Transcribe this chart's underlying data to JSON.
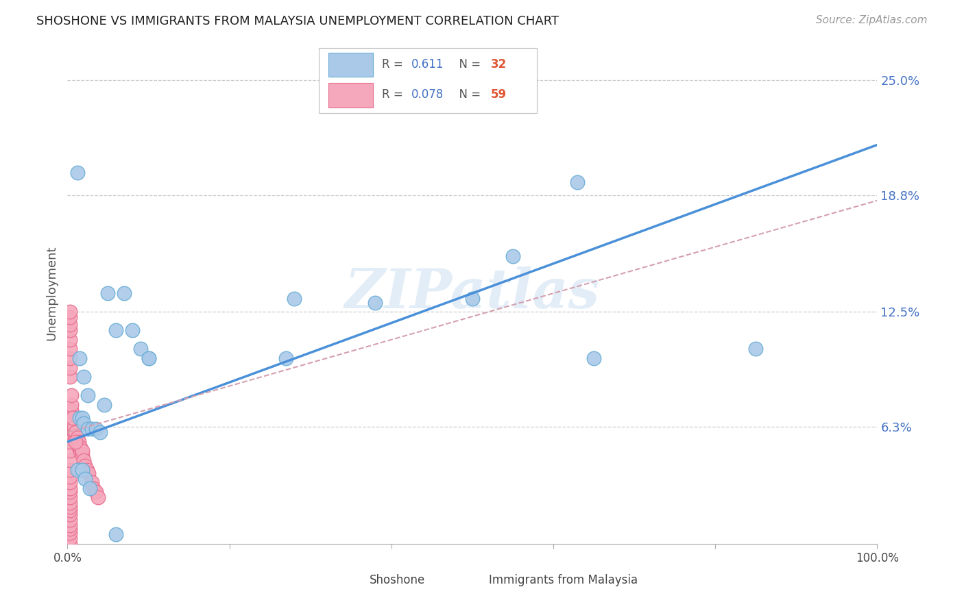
{
  "title": "SHOSHONE VS IMMIGRANTS FROM MALAYSIA UNEMPLOYMENT CORRELATION CHART",
  "source": "Source: ZipAtlas.com",
  "ylabel": "Unemployment",
  "ytick_vals": [
    0.063,
    0.125,
    0.188,
    0.25
  ],
  "ytick_labels": [
    "6.3%",
    "12.5%",
    "18.8%",
    "25.0%"
  ],
  "xlim": [
    0.0,
    1.0
  ],
  "ylim": [
    0.0,
    0.27
  ],
  "watermark": "ZIPatlas",
  "shoshone_color": "#aac9e8",
  "malaysia_color": "#f5a8bc",
  "shoshone_edge": "#6aaed6",
  "malaysia_edge": "#e87090",
  "trend_blue": "#4a90d9",
  "trend_pink_color": "#d4a0b0",
  "background_color": "#ffffff",
  "grid_color": "#cccccc",
  "shoshone_x": [
    0.012,
    0.015,
    0.018,
    0.02,
    0.025,
    0.03,
    0.035,
    0.04,
    0.045,
    0.05,
    0.06,
    0.07,
    0.08,
    0.09,
    0.1,
    0.015,
    0.02,
    0.025,
    0.27,
    0.38,
    0.5,
    0.55,
    0.63,
    0.65,
    0.85,
    0.28,
    0.1,
    0.012,
    0.018,
    0.022,
    0.028,
    0.06
  ],
  "shoshone_y": [
    0.2,
    0.068,
    0.068,
    0.065,
    0.062,
    0.062,
    0.062,
    0.06,
    0.075,
    0.135,
    0.115,
    0.135,
    0.115,
    0.105,
    0.1,
    0.1,
    0.09,
    0.08,
    0.1,
    0.13,
    0.132,
    0.155,
    0.195,
    0.1,
    0.105,
    0.132,
    0.1,
    0.04,
    0.04,
    0.035,
    0.03,
    0.005
  ],
  "malaysia_x": [
    0.003,
    0.003,
    0.003,
    0.003,
    0.003,
    0.003,
    0.003,
    0.003,
    0.003,
    0.003,
    0.003,
    0.003,
    0.003,
    0.003,
    0.003,
    0.003,
    0.003,
    0.003,
    0.003,
    0.003,
    0.005,
    0.005,
    0.005,
    0.005,
    0.005,
    0.007,
    0.007,
    0.007,
    0.008,
    0.008,
    0.01,
    0.01,
    0.012,
    0.012,
    0.014,
    0.014,
    0.016,
    0.016,
    0.018,
    0.018,
    0.02,
    0.022,
    0.024,
    0.026,
    0.03,
    0.032,
    0.035,
    0.038,
    0.003,
    0.003,
    0.003,
    0.003,
    0.003,
    0.003,
    0.003,
    0.003,
    0.003,
    0.006,
    0.01
  ],
  "malaysia_y": [
    0.0,
    0.003,
    0.006,
    0.008,
    0.01,
    0.013,
    0.016,
    0.018,
    0.02,
    0.022,
    0.025,
    0.028,
    0.03,
    0.033,
    0.036,
    0.04,
    0.045,
    0.05,
    0.055,
    0.06,
    0.065,
    0.068,
    0.072,
    0.075,
    0.08,
    0.062,
    0.065,
    0.068,
    0.06,
    0.063,
    0.058,
    0.06,
    0.055,
    0.057,
    0.052,
    0.055,
    0.05,
    0.052,
    0.048,
    0.05,
    0.045,
    0.042,
    0.04,
    0.038,
    0.033,
    0.03,
    0.028,
    0.025,
    0.09,
    0.095,
    0.1,
    0.105,
    0.11,
    0.115,
    0.118,
    0.122,
    0.125,
    0.068,
    0.055
  ],
  "blue_line_x": [
    0.0,
    1.0
  ],
  "blue_line_y": [
    0.055,
    0.215
  ],
  "pink_line_x": [
    0.0,
    1.0
  ],
  "pink_line_y": [
    0.06,
    0.185
  ]
}
